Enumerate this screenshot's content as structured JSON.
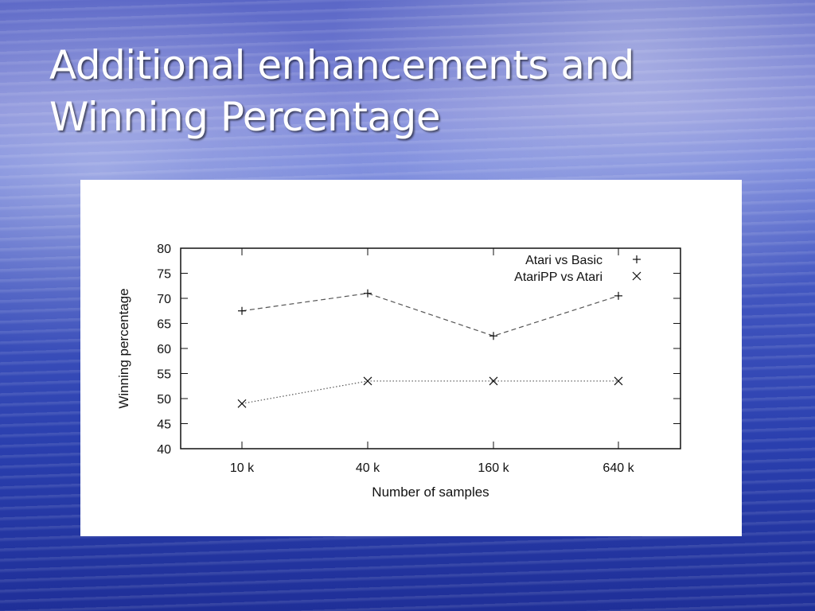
{
  "slide": {
    "title_line_1": "Additional enhancements and",
    "title_line_2": "Winning Percentage"
  },
  "chart_data": {
    "type": "line",
    "title": "",
    "xlabel": "Number of samples",
    "ylabel": "Winning percentage",
    "categories": [
      "10 k",
      "40 k",
      "160 k",
      "640 k"
    ],
    "ylim": [
      40,
      80
    ],
    "yticks": [
      40,
      45,
      50,
      55,
      60,
      65,
      70,
      75,
      80
    ],
    "grid": false,
    "legend": "top-right",
    "series": [
      {
        "name": "Atari vs Basic",
        "marker": "+",
        "line_style": "dashed",
        "values": [
          67.5,
          71,
          62.5,
          70.5
        ]
      },
      {
        "name": "AtariPP vs Atari",
        "marker": "x",
        "line_style": "dotted",
        "values": [
          49,
          53.5,
          53.5,
          53.5
        ]
      }
    ]
  }
}
